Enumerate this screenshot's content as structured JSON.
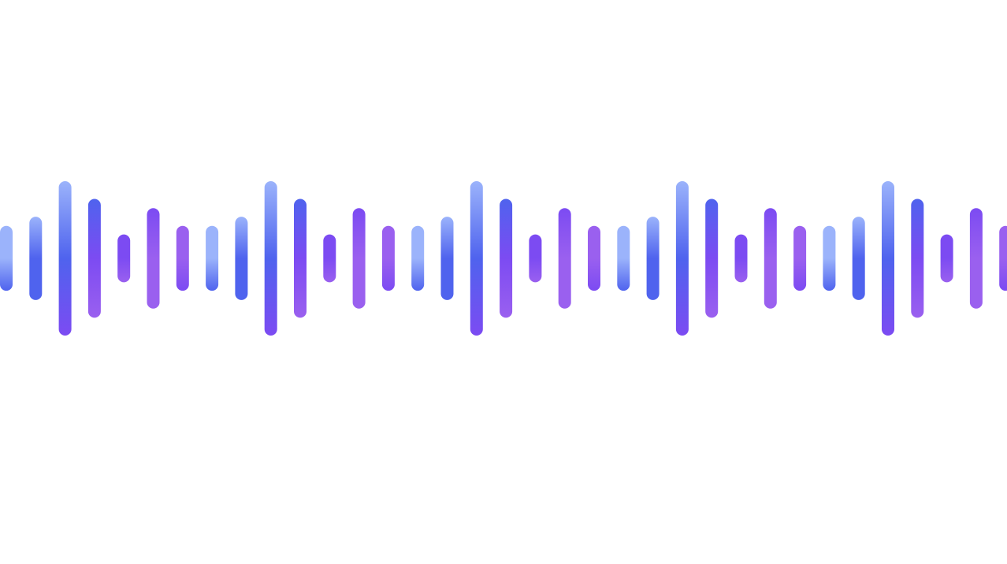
{
  "waveform": {
    "bar_levels": [
      0.42,
      0.54,
      1.0,
      0.77,
      0.31,
      0.65,
      0.42,
      0.42,
      0.54,
      1.0,
      0.77,
      0.31,
      0.65,
      0.42,
      0.42,
      0.54,
      1.0,
      0.77,
      0.31,
      0.65,
      0.42,
      0.42,
      0.54,
      1.0,
      0.77,
      0.31,
      0.65,
      0.42,
      0.42,
      0.54,
      1.0,
      0.77,
      0.31,
      0.65,
      0.42
    ],
    "palette": {
      "light_blue": "#9bb3fb",
      "blue": "#4f63ee",
      "violet": "#7c4bf2",
      "purple": "#9a60ef"
    }
  }
}
